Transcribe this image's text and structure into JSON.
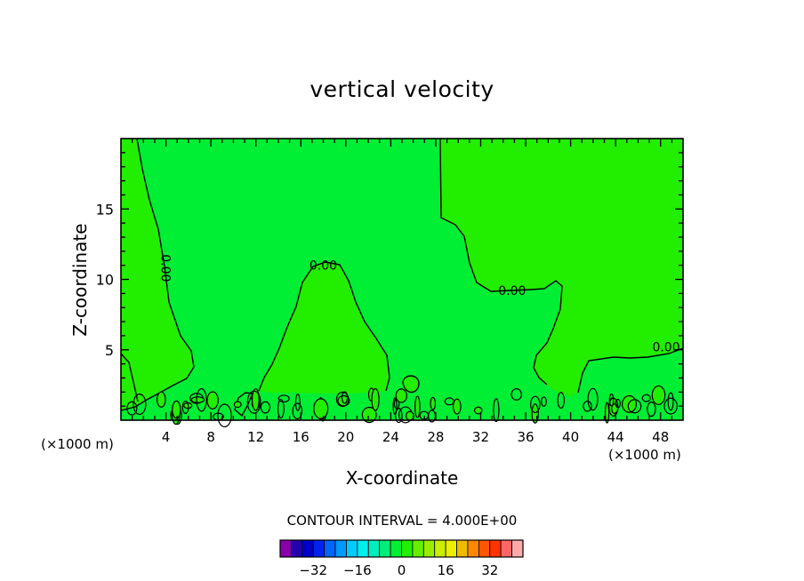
{
  "chart_data": {
    "type": "contour",
    "title": "vertical velocity",
    "xlabel": "X-coordinate",
    "ylabel": "Z-coordinate",
    "x_unit_label_left": "(×1000 m)",
    "x_unit_label_right": "(×1000 m)",
    "xlim": [
      0,
      50
    ],
    "ylim": [
      0,
      20
    ],
    "x_ticks": [
      4,
      8,
      12,
      16,
      20,
      24,
      28,
      32,
      36,
      40,
      44,
      48
    ],
    "y_ticks": [
      5,
      10,
      15
    ],
    "contour_interval_text": "CONTOUR INTERVAL = 4.000E+00",
    "contour_labels": [
      {
        "text": "0.00",
        "x": 4.0,
        "z": 10.8,
        "rotation": "vertical"
      },
      {
        "text": "0.00",
        "x": 18.0,
        "z": 11.0,
        "rotation": "horizontal"
      },
      {
        "text": "0.00",
        "x": 34.8,
        "z": 9.2,
        "rotation": "horizontal"
      },
      {
        "text": "0.00",
        "x": 48.5,
        "z": 5.2,
        "rotation": "horizontal"
      }
    ],
    "colorbar": {
      "colors": [
        "#8800aa",
        "#2200aa",
        "#0000cc",
        "#0022ee",
        "#0066ff",
        "#0099ff",
        "#00ccff",
        "#00eeee",
        "#00eebb",
        "#00ee77",
        "#00ee33",
        "#22ee00",
        "#66ee00",
        "#99ee00",
        "#ccee00",
        "#eeee00",
        "#eebb00",
        "#ff8800",
        "#ff5500",
        "#ff3300",
        "#ff6666",
        "#ffaaaa"
      ],
      "tick_labels": [
        "-32",
        "-16",
        "0",
        "16",
        "32"
      ],
      "tick_values": [
        -32,
        -16,
        0,
        16,
        32
      ],
      "range": [
        -44,
        44
      ]
    },
    "field_colors": {
      "positive": "#22ee00",
      "near_zero": "#00ee33"
    }
  }
}
